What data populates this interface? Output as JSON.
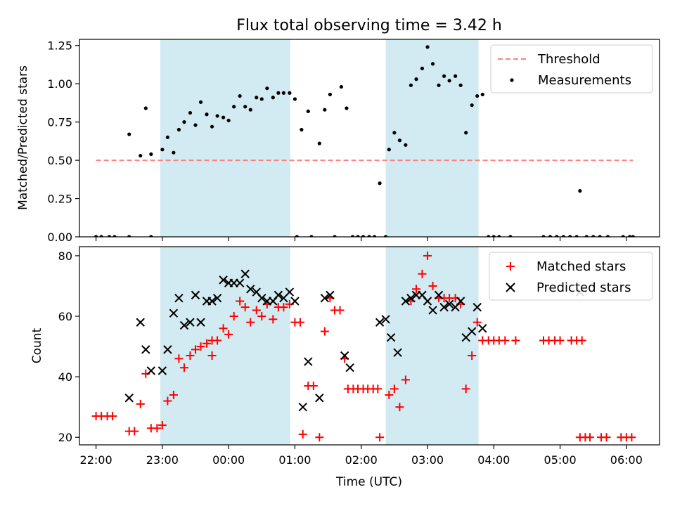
{
  "figure": {
    "title": "Flux total observing time = 3.42 h",
    "xlabel": "Time (UTC)",
    "x_ticks": [
      "22:00",
      "23:00",
      "00:00",
      "01:00",
      "02:00",
      "03:00",
      "04:00",
      "05:00",
      "06:00"
    ],
    "x_tick_hours": [
      22,
      23,
      24,
      25,
      26,
      27,
      28,
      29,
      30
    ],
    "xlim_hours": [
      21.75,
      30.5
    ],
    "shaded_spans_hours": [
      [
        22.97,
        24.93
      ],
      [
        26.37,
        27.77
      ]
    ],
    "shade_color": "#add8e6",
    "x_axis_note": "x values are in hours after 00:00 of the first night; values of 24 and above fall after midnight (e.g. 25.5 = 01:30)"
  },
  "chart_data": [
    {
      "type": "scatter",
      "ylabel": "Matched/Predicted stars",
      "ylim": [
        0,
        1.29
      ],
      "y_ticks": [
        "0.00",
        "0.25",
        "0.50",
        "0.75",
        "1.00",
        "1.25"
      ],
      "y_tick_values": [
        0,
        0.25,
        0.5,
        0.75,
        1.0,
        1.25
      ],
      "legend_placement": "upper-right",
      "threshold": {
        "name": "Threshold",
        "value": 0.5,
        "x_range": [
          22.0,
          30.1
        ],
        "color": "#ff7f7f",
        "style": "dashed"
      },
      "series": [
        {
          "name": "Measurements",
          "marker": "dot",
          "color": "#000000",
          "points": [
            [
              22.0,
              0.0
            ],
            [
              22.08,
              0.0
            ],
            [
              22.2,
              0.0
            ],
            [
              22.28,
              0.0
            ],
            [
              22.5,
              0.0
            ],
            [
              22.5,
              0.67
            ],
            [
              22.67,
              0.53
            ],
            [
              22.75,
              0.84
            ],
            [
              22.83,
              0.54
            ],
            [
              22.83,
              0.0
            ],
            [
              23.0,
              0.57
            ],
            [
              23.08,
              0.65
            ],
            [
              23.17,
              0.55
            ],
            [
              23.25,
              0.7
            ],
            [
              23.33,
              0.75
            ],
            [
              23.42,
              0.81
            ],
            [
              23.5,
              0.73
            ],
            [
              23.58,
              0.88
            ],
            [
              23.67,
              0.8
            ],
            [
              23.75,
              0.72
            ],
            [
              23.83,
              0.79
            ],
            [
              23.92,
              0.78
            ],
            [
              24.0,
              0.76
            ],
            [
              24.08,
              0.85
            ],
            [
              24.17,
              0.92
            ],
            [
              24.25,
              0.85
            ],
            [
              24.33,
              0.83
            ],
            [
              24.42,
              0.91
            ],
            [
              24.5,
              0.9
            ],
            [
              24.58,
              0.97
            ],
            [
              24.67,
              0.91
            ],
            [
              24.75,
              0.94
            ],
            [
              24.83,
              0.94
            ],
            [
              24.92,
              0.94
            ],
            [
              25.0,
              0.9
            ],
            [
              25.03,
              0.0
            ],
            [
              25.1,
              0.7
            ],
            [
              25.2,
              0.82
            ],
            [
              25.25,
              0.0
            ],
            [
              25.37,
              0.61
            ],
            [
              25.45,
              0.83
            ],
            [
              25.53,
              0.93
            ],
            [
              25.6,
              0.0
            ],
            [
              25.7,
              0.98
            ],
            [
              25.78,
              0.84
            ],
            [
              25.87,
              0.0
            ],
            [
              25.95,
              0.0
            ],
            [
              26.03,
              0.0
            ],
            [
              26.12,
              0.0
            ],
            [
              26.2,
              0.0
            ],
            [
              26.28,
              0.35
            ],
            [
              26.37,
              0.0
            ],
            [
              26.42,
              0.57
            ],
            [
              26.5,
              0.68
            ],
            [
              26.58,
              0.63
            ],
            [
              26.67,
              0.6
            ],
            [
              26.75,
              0.99
            ],
            [
              26.83,
              1.03
            ],
            [
              26.92,
              1.1
            ],
            [
              27.0,
              1.24
            ],
            [
              27.08,
              1.13
            ],
            [
              27.17,
              0.99
            ],
            [
              27.25,
              1.05
            ],
            [
              27.33,
              1.02
            ],
            [
              27.42,
              1.05
            ],
            [
              27.5,
              0.99
            ],
            [
              27.58,
              0.68
            ],
            [
              27.67,
              0.86
            ],
            [
              27.75,
              0.92
            ],
            [
              27.83,
              0.93
            ],
            [
              27.92,
              0.0
            ],
            [
              28.0,
              0.0
            ],
            [
              28.08,
              0.0
            ],
            [
              28.25,
              0.0
            ],
            [
              28.75,
              0.0
            ],
            [
              28.85,
              0.0
            ],
            [
              28.95,
              0.0
            ],
            [
              29.05,
              0.0
            ],
            [
              29.15,
              0.0
            ],
            [
              29.25,
              0.0
            ],
            [
              29.3,
              0.3
            ],
            [
              29.4,
              0.0
            ],
            [
              29.5,
              0.0
            ],
            [
              29.6,
              0.0
            ],
            [
              29.72,
              0.0
            ],
            [
              29.95,
              0.0
            ],
            [
              30.05,
              0.0
            ],
            [
              30.1,
              0.0
            ]
          ]
        }
      ]
    },
    {
      "type": "scatter",
      "ylabel": "Count",
      "ylim": [
        17.5,
        83
      ],
      "y_ticks": [
        "20",
        "40",
        "60",
        "80"
      ],
      "y_tick_values": [
        20,
        40,
        60,
        80
      ],
      "legend_placement": "upper-right",
      "series": [
        {
          "name": "Matched stars",
          "marker": "plus",
          "color": "#ff0000",
          "points": [
            [
              22.0,
              27
            ],
            [
              22.08,
              27
            ],
            [
              22.17,
              27
            ],
            [
              22.25,
              27
            ],
            [
              22.5,
              22
            ],
            [
              22.58,
              22
            ],
            [
              22.67,
              31
            ],
            [
              22.75,
              41
            ],
            [
              22.83,
              23
            ],
            [
              22.92,
              23
            ],
            [
              23.0,
              24
            ],
            [
              23.08,
              32
            ],
            [
              23.17,
              34
            ],
            [
              23.25,
              46
            ],
            [
              23.33,
              43
            ],
            [
              23.42,
              47
            ],
            [
              23.5,
              49
            ],
            [
              23.58,
              50
            ],
            [
              23.67,
              51
            ],
            [
              23.75,
              52
            ],
            [
              23.75,
              47
            ],
            [
              23.83,
              52
            ],
            [
              23.92,
              56
            ],
            [
              24.0,
              54
            ],
            [
              24.08,
              60
            ],
            [
              24.17,
              65
            ],
            [
              24.25,
              63
            ],
            [
              24.33,
              58
            ],
            [
              24.42,
              62
            ],
            [
              24.5,
              60
            ],
            [
              24.58,
              64
            ],
            [
              24.67,
              59
            ],
            [
              24.75,
              63
            ],
            [
              24.83,
              63
            ],
            [
              24.92,
              64
            ],
            [
              25.0,
              58
            ],
            [
              25.08,
              58
            ],
            [
              25.12,
              21
            ],
            [
              25.2,
              37
            ],
            [
              25.28,
              37
            ],
            [
              25.37,
              20
            ],
            [
              25.45,
              55
            ],
            [
              25.53,
              66
            ],
            [
              25.6,
              62
            ],
            [
              25.68,
              62
            ],
            [
              25.75,
              46
            ],
            [
              25.8,
              36
            ],
            [
              25.88,
              36
            ],
            [
              25.95,
              36
            ],
            [
              26.03,
              36
            ],
            [
              26.1,
              36
            ],
            [
              26.18,
              36
            ],
            [
              26.25,
              36
            ],
            [
              26.28,
              20
            ],
            [
              26.42,
              34
            ],
            [
              26.5,
              36
            ],
            [
              26.58,
              30
            ],
            [
              26.67,
              39
            ],
            [
              26.75,
              65
            ],
            [
              26.83,
              69
            ],
            [
              26.92,
              74
            ],
            [
              27.0,
              80
            ],
            [
              27.08,
              70
            ],
            [
              27.17,
              66
            ],
            [
              27.25,
              66
            ],
            [
              27.33,
              66
            ],
            [
              27.42,
              66
            ],
            [
              27.5,
              64
            ],
            [
              27.58,
              36
            ],
            [
              27.67,
              47
            ],
            [
              27.75,
              58
            ],
            [
              27.83,
              52
            ],
            [
              27.92,
              52
            ],
            [
              28.0,
              52
            ],
            [
              28.08,
              52
            ],
            [
              28.17,
              52
            ],
            [
              28.33,
              52
            ],
            [
              28.75,
              52
            ],
            [
              28.83,
              52
            ],
            [
              28.92,
              52
            ],
            [
              29.0,
              52
            ],
            [
              29.17,
              52
            ],
            [
              29.25,
              52
            ],
            [
              29.33,
              52
            ],
            [
              29.3,
              20
            ],
            [
              29.38,
              20
            ],
            [
              29.45,
              20
            ],
            [
              29.62,
              20
            ],
            [
              29.7,
              20
            ],
            [
              29.92,
              20
            ],
            [
              30.0,
              20
            ],
            [
              30.08,
              20
            ]
          ]
        },
        {
          "name": "Predicted stars",
          "marker": "x",
          "color": "#000000",
          "points": [
            [
              22.5,
              33
            ],
            [
              22.67,
              58
            ],
            [
              22.75,
              49
            ],
            [
              22.83,
              42
            ],
            [
              23.0,
              42
            ],
            [
              23.08,
              49
            ],
            [
              23.17,
              61
            ],
            [
              23.25,
              66
            ],
            [
              23.33,
              57
            ],
            [
              23.42,
              58
            ],
            [
              23.5,
              67
            ],
            [
              23.58,
              58
            ],
            [
              23.67,
              65
            ],
            [
              23.75,
              65
            ],
            [
              23.83,
              66
            ],
            [
              23.92,
              72
            ],
            [
              24.0,
              71
            ],
            [
              24.08,
              71
            ],
            [
              24.17,
              71
            ],
            [
              24.25,
              74
            ],
            [
              24.33,
              69
            ],
            [
              24.42,
              68
            ],
            [
              24.5,
              66
            ],
            [
              24.58,
              65
            ],
            [
              24.67,
              65
            ],
            [
              24.75,
              67
            ],
            [
              24.83,
              66
            ],
            [
              24.92,
              68
            ],
            [
              25.0,
              65
            ],
            [
              25.12,
              30
            ],
            [
              25.2,
              45
            ],
            [
              25.37,
              33
            ],
            [
              25.45,
              66
            ],
            [
              25.53,
              67
            ],
            [
              25.75,
              47
            ],
            [
              25.83,
              43
            ],
            [
              26.28,
              58
            ],
            [
              26.37,
              59
            ],
            [
              26.45,
              53
            ],
            [
              26.55,
              48
            ],
            [
              26.67,
              65
            ],
            [
              26.75,
              66
            ],
            [
              26.83,
              67
            ],
            [
              26.92,
              67
            ],
            [
              27.0,
              65
            ],
            [
              27.08,
              62
            ],
            [
              27.17,
              67
            ],
            [
              27.25,
              63
            ],
            [
              27.33,
              64
            ],
            [
              27.42,
              63
            ],
            [
              27.5,
              65
            ],
            [
              27.58,
              53
            ],
            [
              27.67,
              55
            ],
            [
              27.75,
              63
            ],
            [
              27.83,
              56
            ],
            [
              29.3,
              68
            ]
          ]
        }
      ]
    }
  ]
}
